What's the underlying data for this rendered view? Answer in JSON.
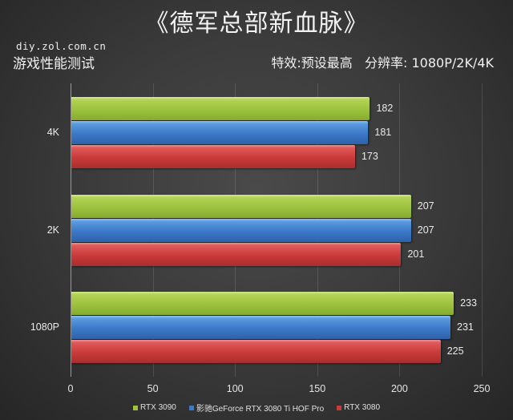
{
  "header": {
    "title": "《德军总部新血脉》",
    "site": "diy.zol.com.cn",
    "subtitle": "游戏性能测试",
    "settings": "特效:预设最高   分辨率: 1080P/2K/4K"
  },
  "colors": {
    "RTX 3090": "#9cc23e",
    "影驰GeForce RTX 3080 Ti HOF Pro": "#3b78c8",
    "RTX 3080": "#c93a3a"
  },
  "chart_data": {
    "type": "bar",
    "orientation": "horizontal",
    "title": "《德军总部新血脉》",
    "subtitle": "游戏性能测试",
    "annotation": "特效:预设最高   分辨率: 1080P/2K/4K",
    "categories": [
      "4K",
      "2K",
      "1080P"
    ],
    "series": [
      {
        "name": "RTX 3090",
        "values": [
          182,
          207,
          233
        ]
      },
      {
        "name": "影驰GeForce RTX 3080 Ti HOF Pro",
        "values": [
          181,
          207,
          231
        ]
      },
      {
        "name": "RTX 3080",
        "values": [
          173,
          201,
          225
        ]
      }
    ],
    "xlabel": "",
    "ylabel": "",
    "xlim": [
      0,
      250
    ],
    "xticks": [
      "0",
      "50",
      "100",
      "150",
      "200",
      "250"
    ],
    "grid": true,
    "legend_position": "bottom"
  }
}
